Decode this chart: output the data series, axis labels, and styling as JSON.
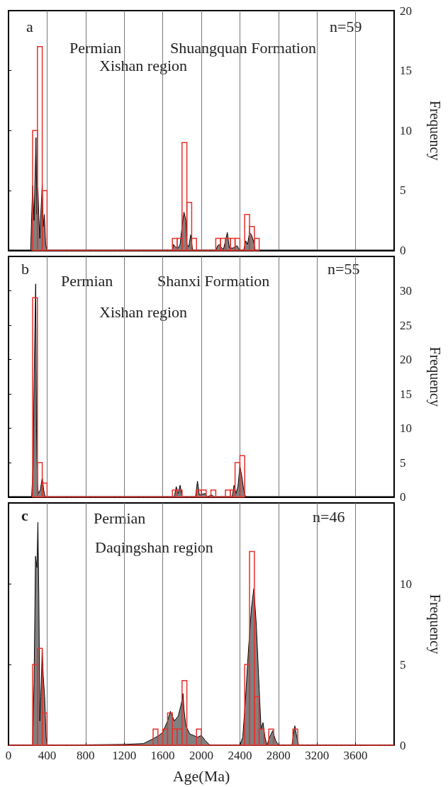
{
  "chart_data": [
    {
      "type": "histogram",
      "ylabel": "Frequency",
      "xlim": [
        0,
        4000
      ],
      "xticks": [
        0,
        400,
        800,
        1200,
        1600,
        2000,
        2400,
        2800,
        3200,
        3600
      ],
      "ylim": [
        0,
        20
      ],
      "yticks": [
        0,
        5,
        10,
        15,
        20
      ],
      "grid": "x",
      "tick_labels": "y",
      "annotations": [
        "a",
        "n=59",
        "Permian",
        "Shuangquan Formation",
        "Xishan region"
      ],
      "series": [
        {
          "type": "area",
          "color": "#808080",
          "x": [
            230,
            250,
            265,
            285,
            295,
            305,
            315,
            325,
            335,
            350,
            360,
            372,
            385,
            400,
            1700,
            1710,
            1730,
            1760,
            1780,
            1800,
            1820,
            1840,
            1850,
            1870,
            1890,
            1910,
            2150,
            2170,
            2190,
            2210,
            2230,
            2270,
            2290,
            2330,
            2370,
            2400,
            2440,
            2460,
            2480,
            2500,
            2520,
            2540,
            2560
          ],
          "values": [
            0,
            5.4,
            2.5,
            9.4,
            3,
            5.2,
            2.8,
            1,
            3,
            5.5,
            2,
            3,
            0.5,
            0,
            0,
            0.5,
            0.3,
            0.2,
            0.5,
            2,
            3.2,
            2.5,
            0.5,
            0.3,
            1.3,
            0,
            0,
            0.4,
            0.5,
            0.2,
            0.1,
            1.5,
            0.2,
            0.2,
            0.4,
            0,
            0,
            0.8,
            0.5,
            1.5,
            1.3,
            0.8,
            0
          ]
        },
        {
          "type": "histogram",
          "color": "#e8302a",
          "bins": [
            250,
            300,
            350,
            400,
            450,
            500,
            550,
            600,
            650,
            700,
            750,
            800,
            850,
            900,
            950,
            1000,
            1050,
            1100,
            1150,
            1200,
            1250,
            1300,
            1350,
            1400,
            1450,
            1500,
            1550,
            1600,
            1650,
            1700,
            1750,
            1800,
            1850,
            1900,
            1950,
            2000,
            2050,
            2100,
            2150,
            2200,
            2250,
            2300,
            2350,
            2400,
            2450,
            2500,
            2550,
            2600
          ],
          "values": [
            10,
            17,
            5,
            0,
            0,
            0,
            0,
            0,
            0,
            0,
            0,
            0,
            0,
            0,
            0,
            0,
            0,
            0,
            0,
            0,
            0,
            0,
            0,
            0,
            0,
            0,
            0,
            0,
            0,
            1,
            1,
            9,
            4,
            1,
            0,
            0,
            0,
            0,
            1,
            1,
            1,
            1,
            1,
            0,
            3,
            2,
            1
          ]
        }
      ]
    },
    {
      "type": "histogram",
      "ylabel": "Frequency",
      "xlim": [
        0,
        4000
      ],
      "xticks": [
        0,
        400,
        800,
        1200,
        1600,
        2000,
        2400,
        2800,
        3200,
        3600
      ],
      "ylim": [
        0,
        35
      ],
      "yticks": [
        0,
        5,
        10,
        15,
        20,
        25,
        30
      ],
      "grid": "x",
      "tick_labels": "y",
      "annotations": [
        "b",
        "n=55",
        "Permian",
        "Shanxi Formation",
        "Xishan region"
      ],
      "series": [
        {
          "type": "area",
          "color": "#808080",
          "x": [
            240,
            255,
            265,
            275,
            282,
            290,
            300,
            310,
            330,
            350,
            365,
            380,
            1720,
            1740,
            1760,
            1780,
            1800,
            1940,
            1960,
            1980,
            2040,
            2060,
            2110,
            2130,
            2320,
            2340,
            2360,
            2380,
            2400,
            2420,
            2440,
            2460
          ],
          "values": [
            0,
            4.4,
            16,
            25.5,
            31,
            10,
            2,
            0.5,
            1,
            2.8,
            1,
            0,
            0,
            1.5,
            0.5,
            1.7,
            0,
            0,
            2.3,
            0.3,
            0.5,
            0,
            0.3,
            0,
            0,
            1.7,
            0.5,
            1.5,
            4.5,
            3,
            1,
            0
          ]
        },
        {
          "type": "histogram",
          "color": "#e8302a",
          "bins": [
            250,
            300,
            350,
            400,
            450,
            500,
            550,
            600,
            650,
            700,
            750,
            800,
            850,
            900,
            950,
            1000,
            1050,
            1100,
            1150,
            1200,
            1250,
            1300,
            1350,
            1400,
            1450,
            1500,
            1550,
            1600,
            1650,
            1700,
            1750,
            1800,
            1850,
            1900,
            1950,
            2000,
            2050,
            2100,
            2150,
            2200,
            2250,
            2300,
            2350,
            2400,
            2450
          ],
          "values": [
            29,
            5,
            2,
            0,
            0,
            0,
            0,
            0,
            0,
            0,
            0,
            0,
            0,
            0,
            0,
            0,
            0,
            0,
            0,
            0,
            0,
            0,
            0,
            0,
            0,
            0,
            0,
            0,
            0,
            1,
            1,
            0,
            0,
            0,
            1,
            1,
            0,
            1,
            0,
            0,
            1,
            1,
            5,
            6
          ]
        }
      ]
    },
    {
      "type": "histogram",
      "xlabel": "Age(Ma)",
      "ylabel": "Frequency",
      "xlim": [
        0,
        4000
      ],
      "xticks": [
        0,
        400,
        800,
        1200,
        1600,
        2000,
        2400,
        2800,
        3200,
        3600
      ],
      "ylim": [
        0,
        15
      ],
      "yticks": [
        0,
        5,
        10
      ],
      "grid": "x",
      "annotations": [
        "c",
        "n=46",
        "Permian",
        "Daqingshan region"
      ],
      "series": [
        {
          "type": "area",
          "color": "#808080",
          "x": [
            250,
            265,
            280,
            295,
            305,
            315,
            325,
            335,
            350,
            360,
            375,
            390,
            400,
            1200,
            1400,
            1500,
            1560,
            1600,
            1650,
            1680,
            1720,
            1760,
            1790,
            1810,
            1820,
            1840,
            1880,
            1920,
            1960,
            2000,
            2040,
            2080,
            2100,
            2400,
            2430,
            2460,
            2490,
            2520,
            2545,
            2570,
            2600,
            2620,
            2640,
            2660,
            2680,
            2710,
            2740,
            2770,
            2800,
            2940,
            2970,
            2990,
            3010
          ],
          "values": [
            0,
            3.8,
            11.7,
            11,
            13.8,
            9,
            1.5,
            3,
            6,
            4.3,
            3,
            0.5,
            0,
            0.05,
            0.1,
            0.4,
            0.6,
            0.8,
            1.5,
            2.1,
            1.5,
            1.8,
            2.5,
            3.2,
            2.2,
            1.2,
            0.7,
            0.6,
            0.5,
            0.6,
            0.3,
            0.05,
            0,
            0,
            0.5,
            3,
            6,
            8.5,
            9.7,
            7.5,
            3.5,
            1,
            1.4,
            0.5,
            0,
            0.5,
            0.9,
            0.3,
            0,
            0,
            1.2,
            0.5,
            0
          ]
        },
        {
          "type": "histogram",
          "color": "#e8302a",
          "bins": [
            0,
            50,
            100,
            150,
            200,
            250,
            300,
            350,
            400,
            450,
            500,
            550,
            600,
            650,
            700,
            750,
            800,
            850,
            900,
            950,
            1000,
            1050,
            1100,
            1150,
            1200,
            1250,
            1300,
            1350,
            1400,
            1450,
            1500,
            1550,
            1600,
            1650,
            1700,
            1750,
            1800,
            1850,
            1900,
            1950,
            2000,
            2050,
            2100,
            2150,
            2200,
            2250,
            2300,
            2350,
            2400,
            2450,
            2500,
            2550,
            2600,
            2650,
            2700,
            2750,
            2800,
            2850,
            2900,
            2950,
            3000,
            3050,
            3100,
            3150,
            3200,
            3250,
            3300,
            3350,
            3400,
            3450,
            3500,
            3550,
            3600,
            3650,
            3700,
            3750,
            3800,
            3850,
            3900,
            3950,
            4000
          ],
          "values": [
            0,
            0,
            0,
            0,
            0,
            5,
            6,
            2,
            0,
            0,
            0,
            0,
            0,
            0,
            0,
            0,
            0,
            0,
            0,
            0,
            0,
            0,
            0,
            0,
            0,
            0,
            0,
            0,
            0,
            0,
            1,
            0,
            1,
            2,
            1,
            1,
            4,
            0,
            0,
            1,
            0,
            0,
            0,
            0,
            0,
            0,
            0,
            0,
            0,
            5,
            12,
            3,
            1,
            0,
            1,
            0,
            0,
            0,
            0,
            1,
            0,
            0,
            0,
            0,
            0,
            0,
            0,
            0,
            0,
            0,
            0,
            0,
            0,
            0,
            0,
            0,
            0,
            0,
            0,
            0
          ]
        }
      ]
    }
  ]
}
